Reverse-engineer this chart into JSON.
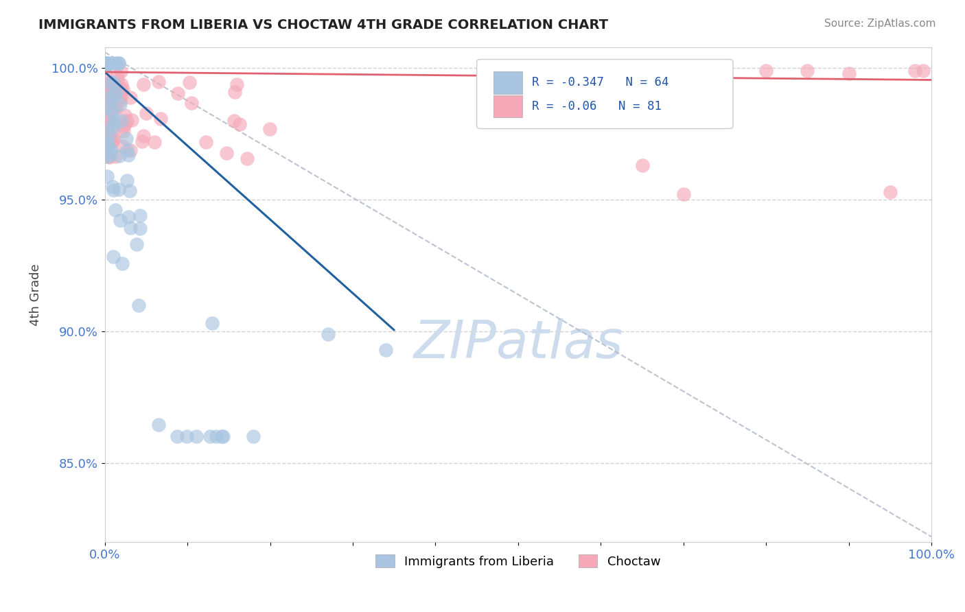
{
  "title": "IMMIGRANTS FROM LIBERIA VS CHOCTAW 4TH GRADE CORRELATION CHART",
  "source_text": "Source: ZipAtlas.com",
  "ylabel": "4th Grade",
  "xmin": 0.0,
  "xmax": 1.0,
  "ymin": 0.82,
  "ymax": 1.008,
  "yticks": [
    1.0,
    0.95,
    0.9,
    0.85
  ],
  "ytick_labels": [
    "100.0%",
    "95.0%",
    "90.0%",
    "85.0%"
  ],
  "xtick_labels": [
    "0.0%",
    "",
    "",
    "",
    "",
    "",
    "",
    "",
    "",
    "",
    "100.0%"
  ],
  "legend_blue_label": "Immigrants from Liberia",
  "legend_pink_label": "Choctaw",
  "R_blue": -0.347,
  "N_blue": 64,
  "R_pink": -0.06,
  "N_pink": 81,
  "blue_color": "#a8c4e0",
  "pink_color": "#f4a8b8",
  "blue_line_color": "#2060a0",
  "pink_line_color": "#e06070",
  "watermark_color": "#ccdcec"
}
